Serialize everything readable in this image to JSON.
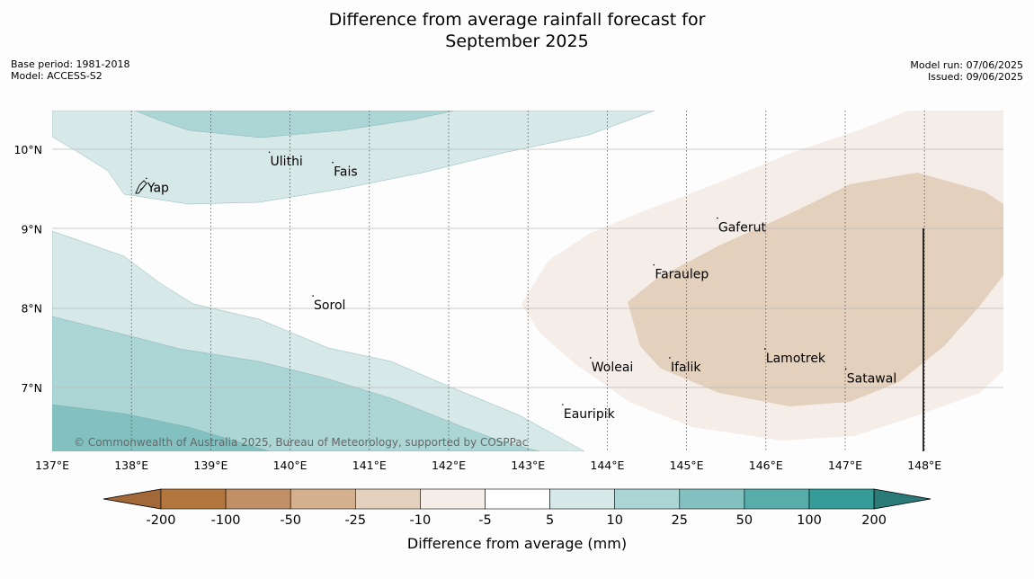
{
  "title": {
    "line1": "Difference from average rainfall forecast for",
    "line2": "September 2025"
  },
  "meta_left": {
    "base_period": "Base period: 1981-2018",
    "model": "Model: ACCESS-S2"
  },
  "meta_right": {
    "model_run": "Model run: 07/06/2025",
    "issued": "Issued: 09/06/2025"
  },
  "map": {
    "lon_range": [
      137,
      149
    ],
    "lat_range": [
      6.3,
      10.5
    ],
    "x_ticks": [
      "137°E",
      "138°E",
      "139°E",
      "140°E",
      "141°E",
      "142°E",
      "143°E",
      "144°E",
      "145°E",
      "146°E",
      "147°E",
      "148°E"
    ],
    "y_ticks": [
      "10°N",
      "9°N",
      "8°N",
      "7°N"
    ],
    "places": [
      {
        "name": "Ulithi",
        "lon": 139.75,
        "lat": 9.85
      },
      {
        "name": "Fais",
        "lon": 140.55,
        "lat": 9.72
      },
      {
        "name": "Yap",
        "lon": 138.2,
        "lat": 9.52
      },
      {
        "name": "Gaferut",
        "lon": 145.4,
        "lat": 9.02
      },
      {
        "name": "Faraulep",
        "lon": 144.6,
        "lat": 8.43
      },
      {
        "name": "Sorol",
        "lon": 140.3,
        "lat": 8.04
      },
      {
        "name": "Lamotrek",
        "lon": 146.0,
        "lat": 7.37
      },
      {
        "name": "Woleai",
        "lon": 143.8,
        "lat": 7.26
      },
      {
        "name": "Ifalik",
        "lon": 144.8,
        "lat": 7.26
      },
      {
        "name": "Satawal",
        "lon": 147.02,
        "lat": 7.12
      },
      {
        "name": "Eauripik",
        "lon": 143.45,
        "lat": 6.67
      }
    ],
    "copyright": "© Commonwealth of Australia 2025, Bureau of Meteorology, supported by COSPPac"
  },
  "colorbar": {
    "label": "Difference from average (mm)",
    "colors": [
      "#a26838",
      "#b3763c",
      "#c19066",
      "#d4b08e",
      "#e3d0bd",
      "#f5ede8",
      "#ffffff",
      "#d6e9e8",
      "#acd5d5",
      "#82c1c0",
      "#58adab",
      "#359c99",
      "#2a7a77"
    ],
    "ticks": [
      "-200",
      "-100",
      "-50",
      "-25",
      "-10",
      "-5",
      "5",
      "10",
      "25",
      "50",
      "100",
      "200"
    ]
  }
}
